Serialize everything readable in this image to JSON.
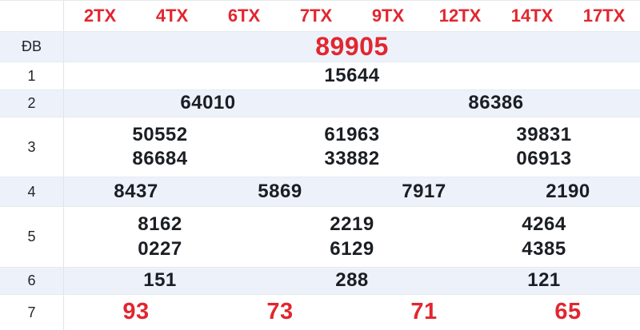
{
  "colors": {
    "accent_red": "#e2262f",
    "alt_row_bg": "#edf2fa",
    "border": "#e6e9ee",
    "value_text": "#1b1e23"
  },
  "header": {
    "columns": [
      "2TX",
      "4TX",
      "6TX",
      "7TX",
      "9TX",
      "12TX",
      "14TX",
      "17TX"
    ]
  },
  "rows": [
    {
      "label": "ĐB",
      "groups": [
        [
          "89905"
        ]
      ]
    },
    {
      "label": "1",
      "groups": [
        [
          "15644"
        ]
      ]
    },
    {
      "label": "2",
      "groups": [
        [
          "64010"
        ],
        [
          "86386"
        ]
      ]
    },
    {
      "label": "3",
      "groups": [
        [
          "50552",
          "86684"
        ],
        [
          "61963",
          "33882"
        ],
        [
          "39831",
          "06913"
        ]
      ]
    },
    {
      "label": "4",
      "groups": [
        [
          "8437"
        ],
        [
          "5869"
        ],
        [
          "7917"
        ],
        [
          "2190"
        ]
      ]
    },
    {
      "label": "5",
      "groups": [
        [
          "8162",
          "0227"
        ],
        [
          "2219",
          "6129"
        ],
        [
          "4264",
          "4385"
        ]
      ]
    },
    {
      "label": "6",
      "groups": [
        [
          "151"
        ],
        [
          "288"
        ],
        [
          "121"
        ]
      ]
    },
    {
      "label": "7",
      "groups": [
        [
          "93"
        ],
        [
          "73"
        ],
        [
          "71"
        ],
        [
          "65"
        ]
      ]
    }
  ]
}
